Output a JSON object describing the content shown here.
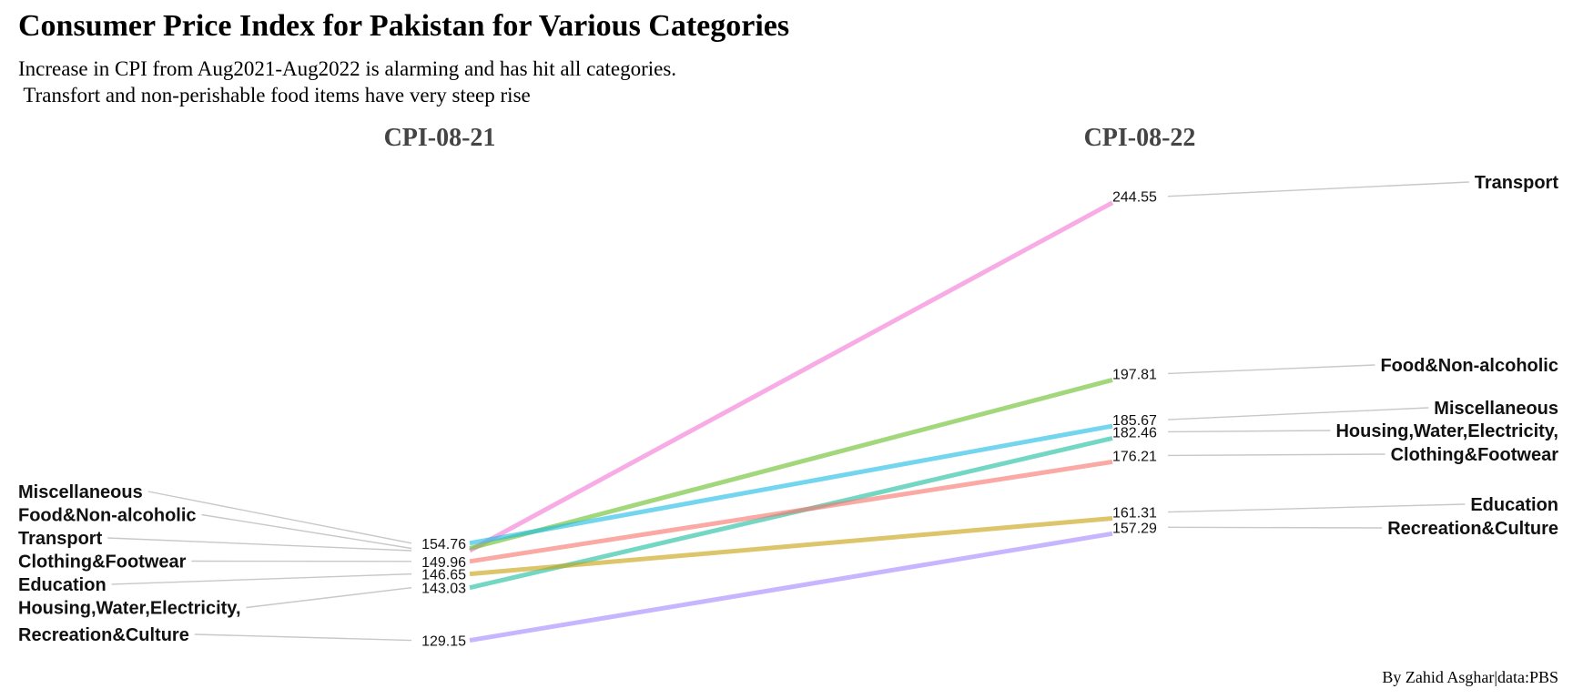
{
  "title": "Consumer Price Index for Pakistan for Various Categories",
  "subtitle_lines": [
    "Increase in CPI from Aug2021-Aug2022 is alarming and has hit all categories.",
    " Transfort and non-perishable food items have very steep rise"
  ],
  "caption": "By Zahid Asghar|data:PBS",
  "chart_data": {
    "type": "line",
    "subtype": "slope",
    "x": [
      "CPI-08-21",
      "CPI-08-22"
    ],
    "series": [
      {
        "name": "Transport",
        "values": [
          152.8,
          244.55
        ],
        "labels": [
          "",
          "244.55"
        ],
        "color": "#f57ad6"
      },
      {
        "name": "Food&Non-alcoholic",
        "values": [
          153.4,
          197.81
        ],
        "labels": [
          "",
          "197.81"
        ],
        "color": "#6bbf2c"
      },
      {
        "name": "Miscellaneous",
        "values": [
          154.76,
          185.67
        ],
        "labels": [
          "154.76",
          "185.67"
        ],
        "color": "#1fbde5"
      },
      {
        "name": "Housing,Water,Electricity,",
        "values": [
          143.03,
          182.46
        ],
        "labels": [
          "143.03",
          "182.46"
        ],
        "color": "#1fbf9f"
      },
      {
        "name": "Clothing&Footwear",
        "values": [
          149.96,
          176.21
        ],
        "labels": [
          "149.96",
          "176.21"
        ],
        "color": "#f8766d"
      },
      {
        "name": "Education",
        "values": [
          146.65,
          161.31
        ],
        "labels": [
          "146.65",
          "161.31"
        ],
        "color": "#c9a212"
      },
      {
        "name": "Recreation&Culture",
        "values": [
          129.15,
          157.29
        ],
        "labels": [
          "129.15",
          "157.29"
        ],
        "color": "#a58aff"
      }
    ],
    "left_label_order": [
      "Miscellaneous",
      "Food&Non-alcoholic",
      "Transport",
      "Clothing&Footwear",
      "Education",
      "Housing,Water,Electricity,",
      "Recreation&Culture"
    ],
    "right_label_order": [
      "Transport",
      "Food&Non-alcoholic",
      "Miscellaneous",
      "Housing,Water,Electricity,",
      "Clothing&Footwear",
      "Education",
      "Recreation&Culture"
    ],
    "ylim": [
      124,
      250
    ],
    "grid": false,
    "legend": "none"
  }
}
